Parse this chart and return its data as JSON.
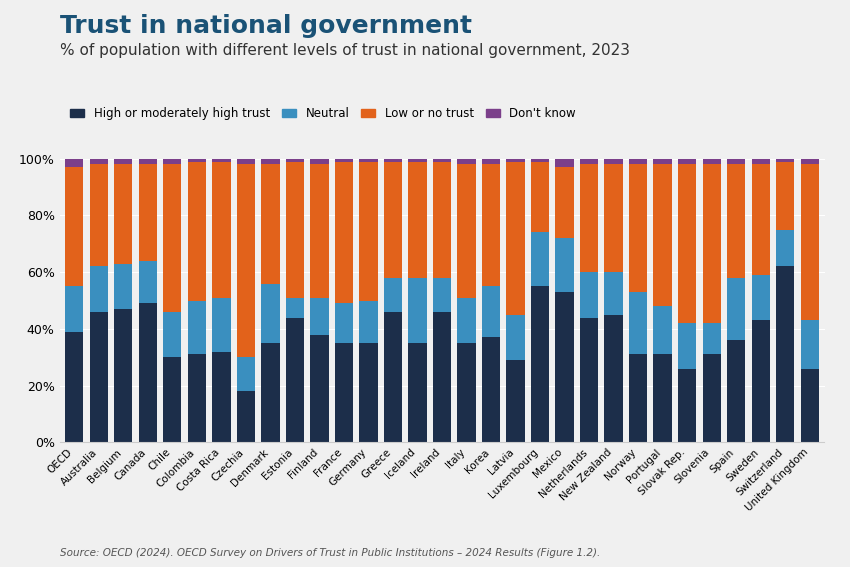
{
  "title": "Trust in national government",
  "subtitle": "% of population with different levels of trust in national government, 2023",
  "source": "Source: OECD (2024). OECD Survey on Drivers of Trust in Public Institutions – 2024 Results (Figure 1.2).",
  "legend_labels": [
    "High or moderately high trust",
    "Neutral",
    "Low or no trust",
    "Don't know"
  ],
  "colors": [
    "#1c2e4a",
    "#3a8fbf",
    "#e2621b",
    "#7b3f8a"
  ],
  "countries": [
    "OECD",
    "Australia",
    "Belgium",
    "Canada",
    "Chile",
    "Colombia",
    "Costa Rica",
    "Czechia",
    "Denmark",
    "Estonia",
    "Finland",
    "France",
    "Germany",
    "Greece",
    "Iceland",
    "Ireland",
    "Italy",
    "Korea",
    "Latvia",
    "Luxembourg",
    "Mexico",
    "Netherlands",
    "New Zealand",
    "Norway",
    "Portugal",
    "Slovak Rep.",
    "Slovenia",
    "Spain",
    "Sweden",
    "Switzerland",
    "United Kingdom"
  ],
  "high": [
    39,
    46,
    47,
    49,
    30,
    31,
    32,
    18,
    35,
    44,
    38,
    35,
    35,
    46,
    35,
    46,
    35,
    37,
    29,
    55,
    53,
    44,
    45,
    31,
    31,
    26,
    31,
    36,
    43,
    62,
    26
  ],
  "neutral": [
    16,
    16,
    16,
    15,
    16,
    19,
    19,
    12,
    21,
    7,
    13,
    14,
    15,
    12,
    23,
    12,
    16,
    18,
    16,
    19,
    19,
    16,
    15,
    22,
    17,
    16,
    11,
    22,
    16,
    13,
    17
  ],
  "low": [
    42,
    36,
    35,
    34,
    52,
    49,
    48,
    68,
    42,
    48,
    47,
    50,
    49,
    41,
    41,
    41,
    47,
    43,
    54,
    25,
    25,
    38,
    38,
    45,
    50,
    56,
    56,
    40,
    39,
    24,
    55
  ],
  "dontknow": [
    3,
    2,
    2,
    2,
    2,
    1,
    1,
    2,
    2,
    1,
    2,
    1,
    1,
    1,
    1,
    1,
    2,
    2,
    1,
    1,
    3,
    2,
    2,
    2,
    2,
    2,
    2,
    2,
    2,
    1,
    2
  ],
  "ylim": [
    0,
    100
  ],
  "yticks": [
    0,
    20,
    40,
    60,
    80,
    100
  ],
  "ytick_labels": [
    "0%",
    "20%",
    "40%",
    "60%",
    "80%",
    "100%"
  ],
  "background_color": "#f0f0f0",
  "title_color": "#1a5276",
  "title_fontsize": 18,
  "subtitle_fontsize": 11,
  "source_fontsize": 7.5
}
